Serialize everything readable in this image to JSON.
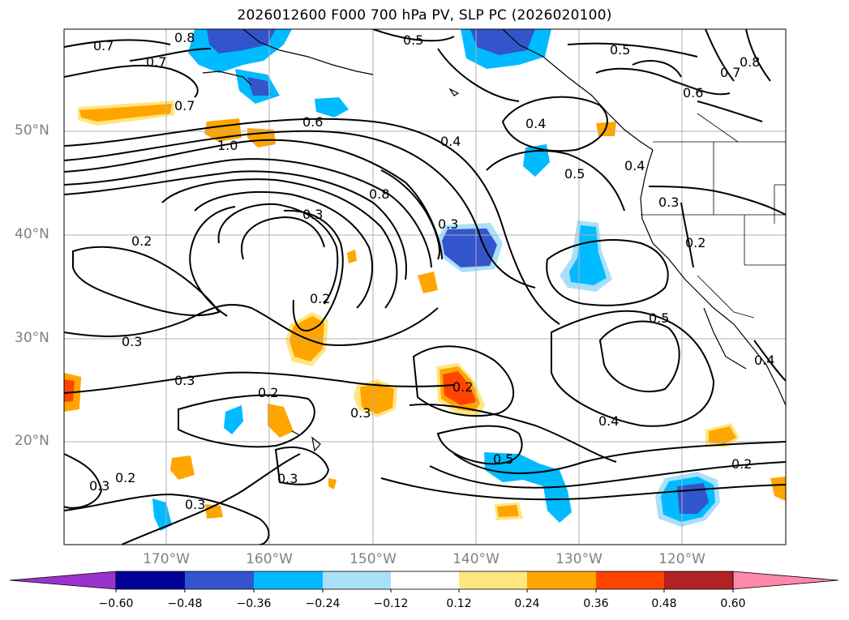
{
  "title": "2026012600 F000 700 hPa PV, SLP PC (2026020100)",
  "lat_ticks": [
    "50°N",
    "40°N",
    "30°N",
    "20°N"
  ],
  "lon_ticks": [
    "170°W",
    "160°W",
    "150°W",
    "140°W",
    "130°W",
    "120°W"
  ],
  "colorbar": {
    "tick_labels": [
      "−0.60",
      "−0.48",
      "−0.36",
      "−0.24",
      "−0.12",
      "0.12",
      "0.24",
      "0.36",
      "0.48",
      "0.60"
    ],
    "colors": [
      "#9933cc",
      "#000099",
      "#3355cc",
      "#00bbff",
      "#aadff8",
      "#ffffff",
      "#ffe680",
      "#ffa500",
      "#ff4400",
      "#b22222",
      "#ff88aa"
    ],
    "extend": "both"
  },
  "contour_labels": [
    "0.7",
    "0.8",
    "0.5",
    "0.5",
    "0.7",
    "0.8",
    "0.7",
    "0.6",
    "0.7",
    "0.6",
    "0.4",
    "0.4",
    "0.5",
    "0.4",
    "1.0",
    "0.8",
    "0.3",
    "0.3",
    "0.3",
    "0.2",
    "0.2",
    "0.2",
    "0.3",
    "0.3",
    "0.2",
    "0.5",
    "0.4",
    "0.2",
    "0.3",
    "0.4",
    "0.5",
    "0.2",
    "0.3",
    "0.3",
    "0.2",
    "0.3"
  ]
}
